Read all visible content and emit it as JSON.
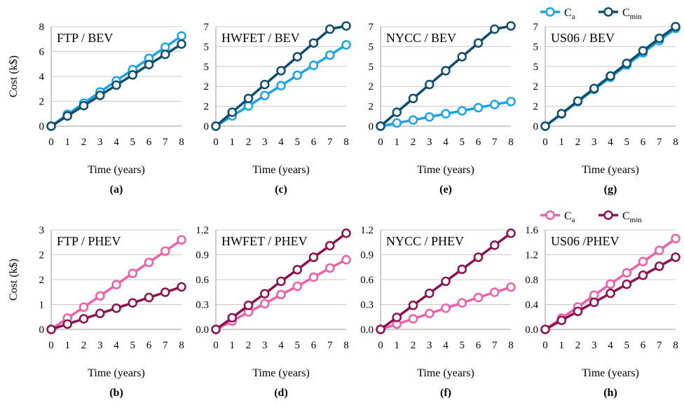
{
  "colors": {
    "bev_a": "#1aa3e8",
    "bev_min": "#0e4d6e",
    "phev_a": "#ef5ea8",
    "phev_min": "#8c1050"
  },
  "legends": [
    {
      "items": [
        {
          "base": "C",
          "sub": "a",
          "series": "a"
        },
        {
          "base": "C",
          "sub": "min",
          "series": "min"
        }
      ]
    },
    {
      "items": [
        {
          "base": "C",
          "sub": "a",
          "series": "a"
        },
        {
          "base": "C",
          "sub": "min",
          "series": "min"
        }
      ]
    }
  ],
  "chart_data": [
    {
      "type": "line",
      "title": "FTP / BEV",
      "label": "(a)",
      "xlabel": "Time (years)",
      "ylabel": "Cost (k$)",
      "x": [
        0,
        1,
        2,
        3,
        4,
        5,
        6,
        7,
        8
      ],
      "yticks": [
        "0",
        "2",
        "4",
        "6",
        "8"
      ],
      "ylim": [
        0,
        8
      ],
      "palette": "bev",
      "series": [
        {
          "key": "a",
          "values": [
            0,
            0.95,
            1.85,
            2.75,
            3.65,
            4.55,
            5.45,
            6.35,
            7.25
          ]
        },
        {
          "key": "min",
          "values": [
            0,
            0.82,
            1.65,
            2.47,
            3.3,
            4.12,
            4.95,
            5.77,
            6.6
          ]
        }
      ]
    },
    {
      "type": "line",
      "title": "HWFET / BEV",
      "label": "(c)",
      "xlabel": "Time (years)",
      "ylabel": "",
      "x": [
        0,
        1,
        2,
        3,
        4,
        5,
        6,
        7,
        8
      ],
      "yticks": [
        "0",
        "2",
        "2",
        "5",
        "5",
        "7"
      ],
      "ylim": [
        0,
        7
      ],
      "palette": "bev",
      "series": [
        {
          "key": "a",
          "values": [
            0,
            0.72,
            1.42,
            2.15,
            2.85,
            3.58,
            4.28,
            5.0,
            5.72
          ]
        },
        {
          "key": "min",
          "values": [
            0,
            0.98,
            1.95,
            2.93,
            3.9,
            4.88,
            5.85,
            6.82,
            7.05
          ]
        }
      ]
    },
    {
      "type": "line",
      "title": "NYCC / BEV",
      "label": "(e)",
      "xlabel": "Time (years)",
      "ylabel": "",
      "x": [
        0,
        1,
        2,
        3,
        4,
        5,
        6,
        7,
        8
      ],
      "yticks": [
        "0",
        "2",
        "2",
        "5",
        "5",
        "7"
      ],
      "ylim": [
        0,
        7
      ],
      "palette": "bev",
      "series": [
        {
          "key": "a",
          "values": [
            0,
            0.22,
            0.43,
            0.65,
            0.87,
            1.08,
            1.3,
            1.52,
            1.73
          ]
        },
        {
          "key": "min",
          "values": [
            0,
            0.98,
            1.95,
            2.93,
            3.9,
            4.88,
            5.85,
            6.82,
            7.05
          ]
        }
      ]
    },
    {
      "type": "line",
      "title": "US06 / BEV",
      "label": "(g)",
      "xlabel": "Time (years)",
      "ylabel": "",
      "x": [
        0,
        1,
        2,
        3,
        4,
        5,
        6,
        7,
        8
      ],
      "yticks": [
        "0",
        "2",
        "2",
        "5",
        "5",
        "7"
      ],
      "ylim": [
        0,
        7
      ],
      "palette": "bev",
      "series": [
        {
          "key": "a",
          "values": [
            0,
            0.86,
            1.72,
            2.58,
            3.44,
            4.3,
            5.16,
            6.02,
            6.88
          ]
        },
        {
          "key": "min",
          "values": [
            0,
            0.88,
            1.77,
            2.65,
            3.53,
            4.42,
            5.3,
            6.18,
            7.0
          ]
        }
      ]
    },
    {
      "type": "line",
      "title": "FTP / PHEV",
      "label": "(b)",
      "xlabel": "Time (years)",
      "ylabel": "Cost (k$)",
      "x": [
        0,
        1,
        2,
        3,
        4,
        5,
        6,
        7,
        8
      ],
      "yticks": [
        "0",
        "1",
        "2",
        "2",
        "3"
      ],
      "ylim": [
        0,
        3
      ],
      "palette": "phev",
      "series": [
        {
          "key": "a",
          "values": [
            0,
            0.34,
            0.67,
            1.01,
            1.35,
            1.69,
            2.02,
            2.36,
            2.7
          ]
        },
        {
          "key": "min",
          "values": [
            0,
            0.16,
            0.32,
            0.48,
            0.64,
            0.8,
            0.96,
            1.12,
            1.28
          ]
        }
      ]
    },
    {
      "type": "line",
      "title": "HWFET / PHEV",
      "label": "(d)",
      "xlabel": "Time (years)",
      "ylabel": "",
      "x": [
        0,
        1,
        2,
        3,
        4,
        5,
        6,
        7,
        8
      ],
      "yticks": [
        "0.0",
        "0.3",
        "0.6",
        "0.9",
        "1.2"
      ],
      "ylim": [
        0,
        1.2
      ],
      "palette": "phev",
      "series": [
        {
          "key": "a",
          "values": [
            0,
            0.1,
            0.21,
            0.31,
            0.42,
            0.52,
            0.63,
            0.74,
            0.84
          ]
        },
        {
          "key": "min",
          "values": [
            0,
            0.14,
            0.29,
            0.43,
            0.58,
            0.72,
            0.87,
            1.01,
            1.16
          ]
        }
      ]
    },
    {
      "type": "line",
      "title": "NYCC / PHEV",
      "label": "(f)",
      "xlabel": "Time (years)",
      "ylabel": "",
      "x": [
        0,
        1,
        2,
        3,
        4,
        5,
        6,
        7,
        8
      ],
      "yticks": [
        "0.0",
        "0.3",
        "0.6",
        "0.9",
        "1.2"
      ],
      "ylim": [
        0,
        1.2
      ],
      "palette": "phev",
      "series": [
        {
          "key": "a",
          "values": [
            0,
            0.064,
            0.128,
            0.192,
            0.256,
            0.32,
            0.384,
            0.448,
            0.51
          ]
        },
        {
          "key": "min",
          "values": [
            0,
            0.145,
            0.29,
            0.435,
            0.58,
            0.725,
            0.87,
            1.015,
            1.16
          ]
        }
      ]
    },
    {
      "type": "line",
      "title": "US06 /PHEV",
      "label": "(h)",
      "xlabel": "Time (years)",
      "ylabel": "",
      "x": [
        0,
        1,
        2,
        3,
        4,
        5,
        6,
        7,
        8
      ],
      "yticks": [
        "0.0",
        "0.4",
        "0.8",
        "1.2",
        "1.6"
      ],
      "ylim": [
        0,
        1.6
      ],
      "palette": "phev",
      "series": [
        {
          "key": "a",
          "values": [
            0,
            0.18,
            0.36,
            0.55,
            0.73,
            0.91,
            1.09,
            1.27,
            1.46
          ]
        },
        {
          "key": "min",
          "values": [
            0,
            0.145,
            0.29,
            0.435,
            0.58,
            0.725,
            0.87,
            1.015,
            1.16
          ]
        }
      ]
    }
  ]
}
